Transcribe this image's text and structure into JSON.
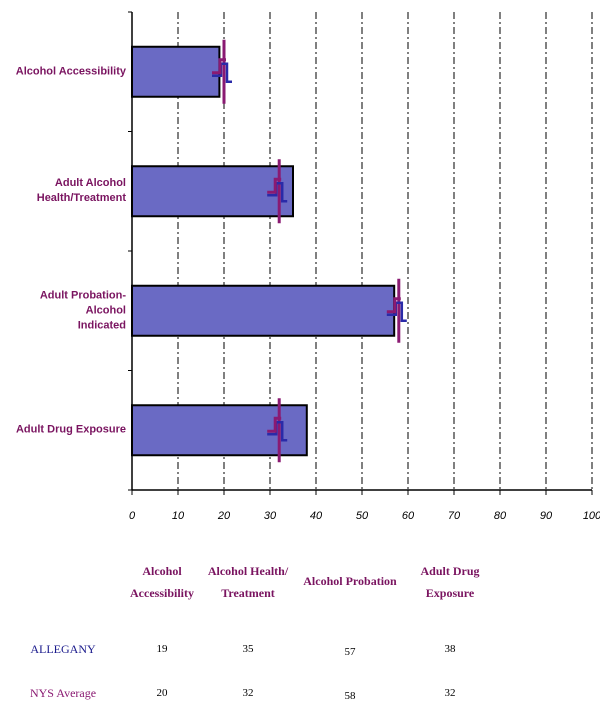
{
  "chart_data": {
    "type": "bar",
    "orientation": "horizontal",
    "categories": [
      "Alcohol Accessibility",
      "Adult Alcohol\nHealth/Treatment",
      "Adult Probation-Alcohol\nIndicated",
      "Adult Drug Exposure"
    ],
    "series": [
      {
        "name": "ALLEGANY",
        "values": [
          19,
          35,
          57,
          38
        ]
      },
      {
        "name": "NYS Average",
        "values": [
          20,
          32,
          58,
          32
        ]
      }
    ],
    "xlim": [
      0,
      100
    ],
    "xticks": [
      "0",
      "10",
      "20",
      "30",
      "40",
      "50",
      "60",
      "70",
      "80",
      "90",
      "100"
    ],
    "grid": "vertical dash-dot",
    "colors": {
      "bar": "#6a6ac4",
      "marker": "#8a1a72",
      "marker_alt": "#2a2aa8"
    }
  },
  "table": {
    "columns": [
      "Alcohol\nAccessibility",
      "Alcohol Health/\nTreatment",
      "Alcohol Probation",
      "Adult Drug\nExposure"
    ],
    "rows": [
      {
        "label": "ALLEGANY",
        "color": "#1a1a8c",
        "values": [
          "19",
          "35",
          "57",
          "38"
        ]
      },
      {
        "label": "NYS Average",
        "color": "#8a1a72",
        "values": [
          "20",
          "32",
          "58",
          "32"
        ]
      }
    ]
  }
}
